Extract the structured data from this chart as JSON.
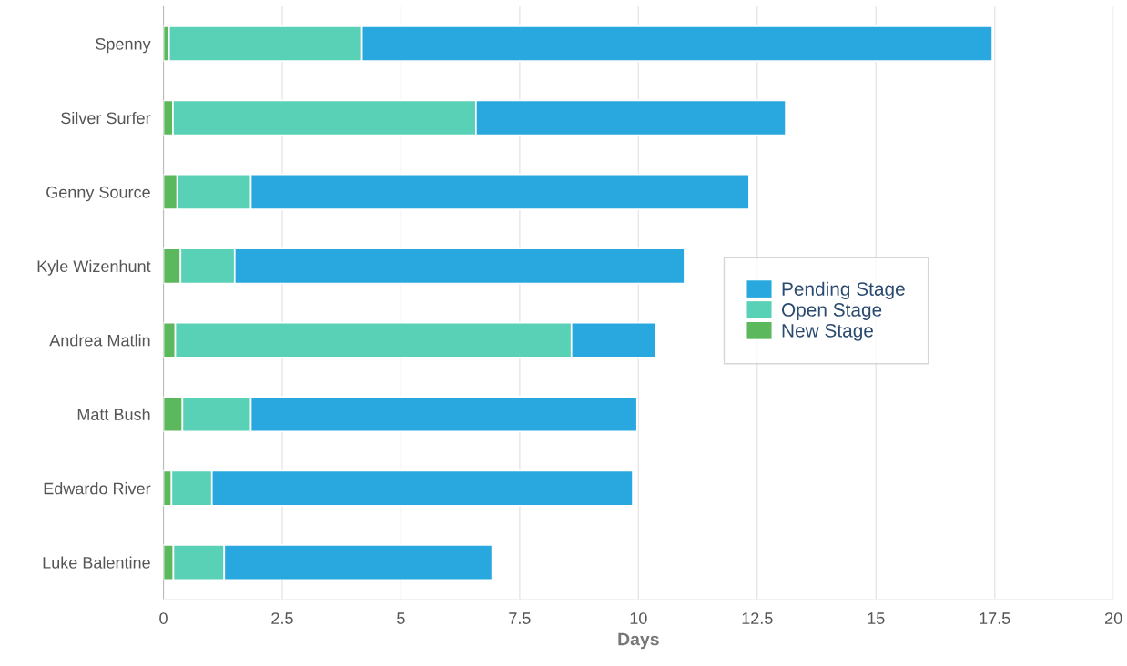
{
  "chart_data": {
    "type": "bar",
    "orientation": "horizontal",
    "stacked": true,
    "xlabel": "Days",
    "categories": [
      "Spenny",
      "Silver Surfer",
      "Genny Source",
      "Kyle Wizenhunt",
      "Andrea Matlin",
      "Matt Bush",
      "Edwardo River",
      "Luke Balentine"
    ],
    "series": [
      {
        "name": "New Stage",
        "color": "#5cb85c",
        "values": [
          0.12,
          0.2,
          0.29,
          0.36,
          0.25,
          0.4,
          0.17,
          0.21
        ]
      },
      {
        "name": "Open Stage",
        "color": "#58d1b6",
        "values": [
          4.06,
          6.38,
          1.55,
          1.14,
          8.34,
          1.44,
          0.85,
          1.07
        ]
      },
      {
        "name": "Pending Stage",
        "color": "#29a8df",
        "values": [
          13.27,
          6.52,
          10.49,
          9.47,
          1.78,
          8.13,
          8.86,
          5.64
        ]
      }
    ],
    "xlim": [
      0,
      20
    ],
    "xticks": [
      0,
      2.5,
      5,
      7.5,
      10,
      12.5,
      15,
      17.5,
      20
    ],
    "grid": "x",
    "legend": "right"
  }
}
